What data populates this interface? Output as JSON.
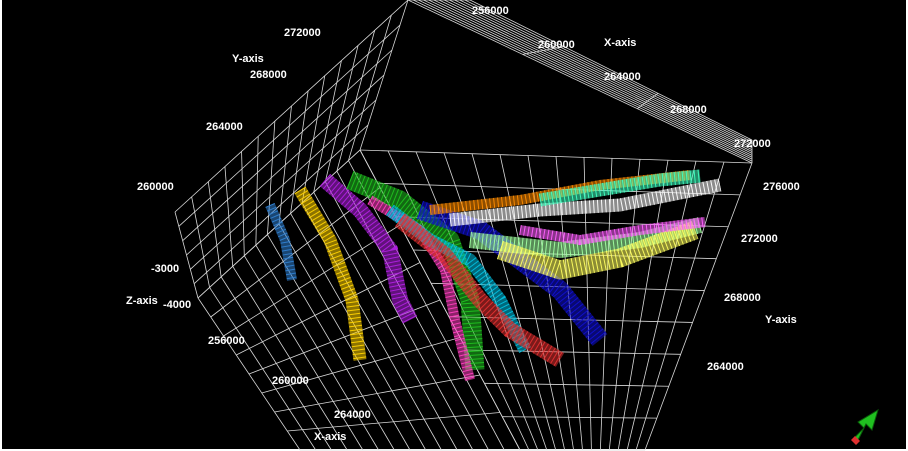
{
  "viewport": {
    "background": "#000000",
    "grid_color": "#d9d9d9"
  },
  "axes": {
    "x_axis_label": "X-axis",
    "y_axis_label": "Y-axis",
    "z_axis_label": "Z-axis",
    "x_ticks_top": [
      "256000",
      "260000",
      "264000",
      "268000",
      "272000"
    ],
    "x_ticks_bottom": [
      "256000",
      "260000",
      "264000"
    ],
    "y_ticks_left": [
      "272000",
      "268000",
      "264000",
      "260000"
    ],
    "y_ticks_right": [
      "276000",
      "272000",
      "268000",
      "264000"
    ],
    "z_ticks": [
      "-3000",
      "-4000"
    ]
  },
  "surfaces": {
    "count": 14,
    "colors": [
      "#2f7fd0",
      "#ffd200",
      "#b020e0",
      "#20c020",
      "#ff3fbf",
      "#00c0e0",
      "#e03030",
      "#1010d0",
      "#ff8c00",
      "#ffffff",
      "#a0ffa0",
      "#ffff60",
      "#ff60ff",
      "#40ffc0"
    ]
  },
  "compass": {
    "icon": "north-arrow-icon",
    "color": "#20c020"
  }
}
